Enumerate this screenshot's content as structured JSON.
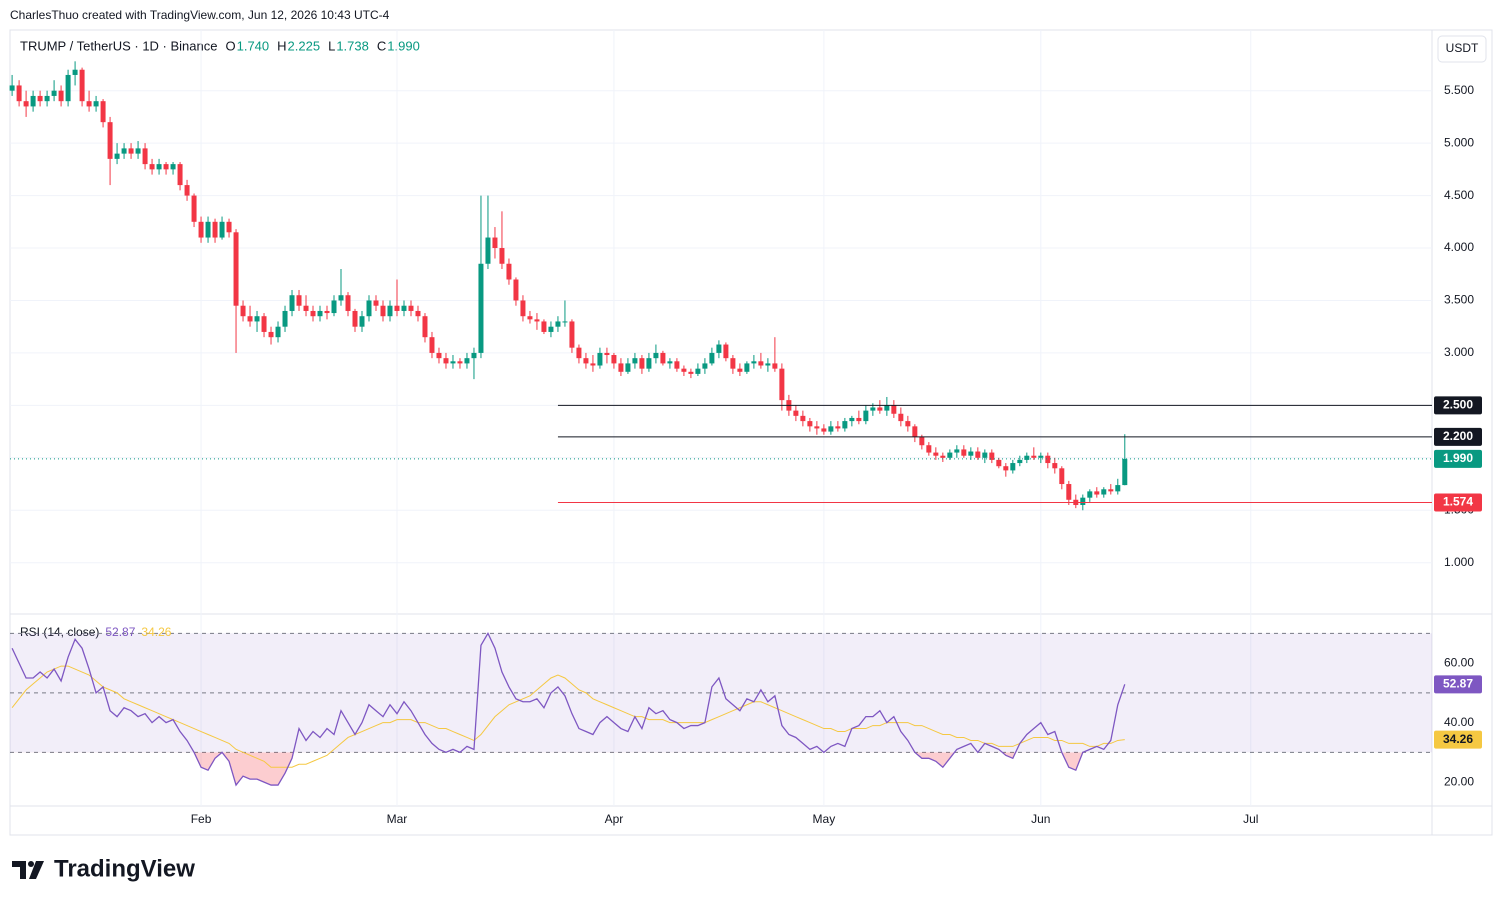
{
  "attribution": "CharlesThuo created with TradingView.com, Jun 12, 2026 10:43 UTC-4",
  "brand": "TradingView",
  "chart_data": {
    "type": "candlestick",
    "title": "TRUMP / TetherUS · 1D · Binance",
    "legend": [
      {
        "name": "O",
        "text": "1.740"
      },
      {
        "name": "H",
        "text": "2.225"
      },
      {
        "name": "L",
        "text": "1.738"
      },
      {
        "name": "C",
        "text": "1.990"
      }
    ],
    "currency": "USDT",
    "up_color": "#089981",
    "down_color": "#f23645",
    "candles": [
      [
        5.5,
        5.65,
        5.45,
        5.55
      ],
      [
        5.55,
        5.6,
        5.35,
        5.4
      ],
      [
        5.4,
        5.5,
        5.25,
        5.35
      ],
      [
        5.35,
        5.5,
        5.3,
        5.45
      ],
      [
        5.45,
        5.5,
        5.35,
        5.4
      ],
      [
        5.4,
        5.5,
        5.35,
        5.45
      ],
      [
        5.45,
        5.6,
        5.4,
        5.5
      ],
      [
        5.5,
        5.55,
        5.35,
        5.4
      ],
      [
        5.4,
        5.7,
        5.35,
        5.65
      ],
      [
        5.65,
        5.78,
        5.55,
        5.7
      ],
      [
        5.7,
        5.72,
        5.35,
        5.4
      ],
      [
        5.4,
        5.5,
        5.3,
        5.35
      ],
      [
        5.35,
        5.45,
        5.3,
        5.4
      ],
      [
        5.4,
        5.42,
        5.15,
        5.2
      ],
      [
        5.2,
        5.25,
        4.6,
        4.85
      ],
      [
        4.85,
        5.0,
        4.8,
        4.9
      ],
      [
        4.9,
        5.0,
        4.85,
        4.95
      ],
      [
        4.95,
        5.0,
        4.85,
        4.9
      ],
      [
        4.9,
        5.02,
        4.85,
        4.95
      ],
      [
        4.95,
        5.0,
        4.75,
        4.8
      ],
      [
        4.8,
        4.85,
        4.7,
        4.75
      ],
      [
        4.75,
        4.85,
        4.7,
        4.8
      ],
      [
        4.8,
        4.82,
        4.7,
        4.75
      ],
      [
        4.75,
        4.82,
        4.7,
        4.8
      ],
      [
        4.8,
        4.82,
        4.55,
        4.6
      ],
      [
        4.6,
        4.65,
        4.45,
        4.5
      ],
      [
        4.5,
        4.52,
        4.2,
        4.25
      ],
      [
        4.25,
        4.3,
        4.05,
        4.1
      ],
      [
        4.1,
        4.3,
        4.05,
        4.25
      ],
      [
        4.25,
        4.28,
        4.05,
        4.1
      ],
      [
        4.1,
        4.3,
        4.08,
        4.25
      ],
      [
        4.25,
        4.28,
        4.1,
        4.15
      ],
      [
        4.15,
        4.18,
        3.0,
        3.45
      ],
      [
        3.45,
        3.5,
        3.3,
        3.35
      ],
      [
        3.35,
        3.45,
        3.25,
        3.3
      ],
      [
        3.3,
        3.4,
        3.2,
        3.35
      ],
      [
        3.35,
        3.38,
        3.15,
        3.2
      ],
      [
        3.2,
        3.25,
        3.08,
        3.15
      ],
      [
        3.15,
        3.3,
        3.1,
        3.25
      ],
      [
        3.25,
        3.45,
        3.2,
        3.4
      ],
      [
        3.4,
        3.6,
        3.35,
        3.55
      ],
      [
        3.55,
        3.6,
        3.4,
        3.45
      ],
      [
        3.45,
        3.55,
        3.35,
        3.4
      ],
      [
        3.4,
        3.45,
        3.3,
        3.35
      ],
      [
        3.35,
        3.45,
        3.3,
        3.4
      ],
      [
        3.4,
        3.45,
        3.32,
        3.38
      ],
      [
        3.38,
        3.55,
        3.35,
        3.5
      ],
      [
        3.5,
        3.8,
        3.45,
        3.55
      ],
      [
        3.55,
        3.58,
        3.35,
        3.4
      ],
      [
        3.4,
        3.42,
        3.2,
        3.25
      ],
      [
        3.25,
        3.4,
        3.2,
        3.35
      ],
      [
        3.35,
        3.55,
        3.3,
        3.5
      ],
      [
        3.5,
        3.55,
        3.4,
        3.45
      ],
      [
        3.45,
        3.5,
        3.3,
        3.35
      ],
      [
        3.35,
        3.5,
        3.3,
        3.45
      ],
      [
        3.45,
        3.7,
        3.35,
        3.4
      ],
      [
        3.4,
        3.5,
        3.35,
        3.45
      ],
      [
        3.45,
        3.5,
        3.35,
        3.4
      ],
      [
        3.4,
        3.45,
        3.3,
        3.35
      ],
      [
        3.35,
        3.38,
        3.1,
        3.15
      ],
      [
        3.15,
        3.2,
        2.95,
        3.0
      ],
      [
        3.0,
        3.05,
        2.9,
        2.95
      ],
      [
        2.95,
        3.0,
        2.85,
        2.9
      ],
      [
        2.9,
        2.98,
        2.85,
        2.92
      ],
      [
        2.92,
        2.95,
        2.85,
        2.9
      ],
      [
        2.9,
        3.0,
        2.85,
        2.95
      ],
      [
        2.95,
        3.05,
        2.75,
        3.0
      ],
      [
        3.0,
        4.5,
        2.95,
        3.85
      ],
      [
        3.85,
        4.5,
        3.8,
        4.1
      ],
      [
        4.1,
        4.2,
        3.9,
        4.0
      ],
      [
        4.0,
        4.35,
        3.8,
        3.85
      ],
      [
        3.85,
        3.9,
        3.65,
        3.7
      ],
      [
        3.7,
        3.72,
        3.45,
        3.5
      ],
      [
        3.5,
        3.55,
        3.3,
        3.35
      ],
      [
        3.35,
        3.4,
        3.28,
        3.32
      ],
      [
        3.32,
        3.38,
        3.22,
        3.3
      ],
      [
        3.3,
        3.32,
        3.18,
        3.2
      ],
      [
        3.2,
        3.3,
        3.15,
        3.25
      ],
      [
        3.25,
        3.35,
        3.2,
        3.3
      ],
      [
        3.3,
        3.5,
        3.25,
        3.3
      ],
      [
        3.3,
        3.32,
        3.0,
        3.05
      ],
      [
        3.05,
        3.08,
        2.9,
        2.95
      ],
      [
        2.95,
        3.0,
        2.85,
        2.9
      ],
      [
        2.9,
        2.98,
        2.82,
        2.88
      ],
      [
        2.88,
        3.05,
        2.85,
        3.0
      ],
      [
        3.0,
        3.05,
        2.9,
        2.98
      ],
      [
        2.98,
        3.0,
        2.85,
        2.9
      ],
      [
        2.9,
        2.95,
        2.78,
        2.82
      ],
      [
        2.82,
        2.95,
        2.8,
        2.9
      ],
      [
        2.9,
        3.0,
        2.85,
        2.95
      ],
      [
        2.95,
        2.98,
        2.8,
        2.85
      ],
      [
        2.85,
        3.0,
        2.82,
        2.95
      ],
      [
        2.95,
        3.08,
        2.9,
        3.0
      ],
      [
        3.0,
        3.02,
        2.88,
        2.9
      ],
      [
        2.9,
        2.95,
        2.85,
        2.92
      ],
      [
        2.92,
        2.95,
        2.82,
        2.85
      ],
      [
        2.85,
        2.88,
        2.78,
        2.82
      ],
      [
        2.82,
        2.85,
        2.76,
        2.8
      ],
      [
        2.8,
        2.9,
        2.78,
        2.85
      ],
      [
        2.85,
        2.95,
        2.8,
        2.9
      ],
      [
        2.9,
        3.05,
        2.88,
        3.0
      ],
      [
        3.0,
        3.12,
        2.95,
        3.08
      ],
      [
        3.08,
        3.1,
        2.92,
        2.95
      ],
      [
        2.95,
        2.98,
        2.8,
        2.85
      ],
      [
        2.85,
        2.9,
        2.78,
        2.82
      ],
      [
        2.82,
        2.92,
        2.8,
        2.9
      ],
      [
        2.9,
        2.98,
        2.85,
        2.92
      ],
      [
        2.92,
        3.0,
        2.85,
        2.88
      ],
      [
        2.88,
        2.95,
        2.82,
        2.9
      ],
      [
        2.9,
        3.15,
        2.82,
        2.85
      ],
      [
        2.85,
        2.9,
        2.45,
        2.55
      ],
      [
        2.55,
        2.6,
        2.4,
        2.45
      ],
      [
        2.45,
        2.5,
        2.35,
        2.4
      ],
      [
        2.4,
        2.45,
        2.3,
        2.35
      ],
      [
        2.35,
        2.38,
        2.25,
        2.3
      ],
      [
        2.3,
        2.35,
        2.22,
        2.28
      ],
      [
        2.28,
        2.32,
        2.22,
        2.25
      ],
      [
        2.25,
        2.35,
        2.22,
        2.3
      ],
      [
        2.3,
        2.35,
        2.25,
        2.28
      ],
      [
        2.28,
        2.38,
        2.25,
        2.35
      ],
      [
        2.35,
        2.4,
        2.3,
        2.38
      ],
      [
        2.38,
        2.45,
        2.32,
        2.35
      ],
      [
        2.35,
        2.5,
        2.32,
        2.45
      ],
      [
        2.45,
        2.52,
        2.4,
        2.48
      ],
      [
        2.48,
        2.55,
        2.42,
        2.45
      ],
      [
        2.45,
        2.58,
        2.4,
        2.5
      ],
      [
        2.5,
        2.55,
        2.38,
        2.42
      ],
      [
        2.42,
        2.48,
        2.3,
        2.35
      ],
      [
        2.35,
        2.4,
        2.25,
        2.3
      ],
      [
        2.3,
        2.32,
        2.15,
        2.2
      ],
      [
        2.2,
        2.22,
        2.08,
        2.12
      ],
      [
        2.12,
        2.15,
        2.02,
        2.05
      ],
      [
        2.05,
        2.1,
        1.98,
        2.02
      ],
      [
        2.02,
        2.05,
        1.96,
        2.0
      ],
      [
        2.0,
        2.08,
        1.98,
        2.05
      ],
      [
        2.05,
        2.12,
        2.0,
        2.08
      ],
      [
        2.08,
        2.12,
        2.0,
        2.02
      ],
      [
        2.02,
        2.1,
        1.98,
        2.06
      ],
      [
        2.06,
        2.1,
        1.98,
        2.0
      ],
      [
        2.0,
        2.08,
        1.95,
        2.05
      ],
      [
        2.05,
        2.08,
        1.95,
        1.98
      ],
      [
        1.98,
        2.0,
        1.9,
        1.92
      ],
      [
        1.92,
        1.95,
        1.82,
        1.88
      ],
      [
        1.88,
        1.98,
        1.85,
        1.95
      ],
      [
        1.95,
        2.02,
        1.92,
        1.98
      ],
      [
        1.98,
        2.05,
        1.95,
        2.02
      ],
      [
        2.02,
        2.1,
        1.98,
        2.0
      ],
      [
        2.0,
        2.05,
        1.95,
        2.02
      ],
      [
        2.02,
        2.05,
        1.9,
        1.95
      ],
      [
        1.95,
        2.0,
        1.85,
        1.9
      ],
      [
        1.9,
        1.92,
        1.7,
        1.75
      ],
      [
        1.75,
        1.78,
        1.55,
        1.6
      ],
      [
        1.6,
        1.65,
        1.52,
        1.55
      ],
      [
        1.55,
        1.65,
        1.5,
        1.62
      ],
      [
        1.62,
        1.7,
        1.58,
        1.68
      ],
      [
        1.68,
        1.72,
        1.62,
        1.65
      ],
      [
        1.65,
        1.72,
        1.62,
        1.7
      ],
      [
        1.7,
        1.75,
        1.65,
        1.68
      ],
      [
        1.68,
        1.8,
        1.65,
        1.74
      ],
      [
        1.74,
        2.225,
        1.738,
        1.99
      ]
    ],
    "xlim": [
      -0.3,
      202.9
    ],
    "xticks": [
      {
        "value": 27,
        "label": "Feb"
      },
      {
        "value": 55,
        "label": "Mar"
      },
      {
        "value": 86,
        "label": "Apr"
      },
      {
        "value": 116,
        "label": "May"
      },
      {
        "value": 147,
        "label": "Jun"
      },
      {
        "value": 177,
        "label": "Jul"
      }
    ],
    "ylim": [
      0.53,
      6.05
    ],
    "yticks": [
      {
        "value": 1,
        "label": "1.000"
      },
      {
        "value": 1.5,
        "label": "1.500"
      },
      {
        "value": 2,
        "label": "2.000"
      },
      {
        "value": 2.5,
        "label": "2.500"
      },
      {
        "value": 3,
        "label": "3.000"
      },
      {
        "value": 3.5,
        "label": "3.500"
      },
      {
        "value": 4,
        "label": "4.000"
      },
      {
        "value": 4.5,
        "label": "4.500"
      },
      {
        "value": 5,
        "label": "5.000"
      },
      {
        "value": 5.5,
        "label": "5.500"
      }
    ],
    "grid": true,
    "levels": [
      {
        "value": 2.5,
        "label": "2.500",
        "color": "#131722",
        "x_start": 78
      },
      {
        "value": 2.2,
        "label": "2.200",
        "color": "#131722",
        "x_start": 78
      },
      {
        "value": 1.574,
        "label": "1.574",
        "color": "#f23645",
        "x_start": 78
      }
    ],
    "last_price": {
      "value": 1.99,
      "label": "1.990",
      "color": "#089981"
    },
    "rsi": {
      "title": "RSI (14, close)",
      "ylim": [
        12.3,
        75.5
      ],
      "yticks": [
        {
          "value": 20,
          "label": "20.00"
        },
        {
          "value": 40,
          "label": "40.00"
        },
        {
          "value": 60,
          "label": "60.00"
        }
      ],
      "bands": [
        70,
        50,
        30
      ],
      "series": [
        {
          "color": "#7e57c2",
          "last_label": "52.87",
          "values": [
            65,
            60,
            55,
            55,
            57,
            55,
            58,
            54,
            62,
            68,
            65,
            58,
            50,
            52,
            44,
            42,
            45,
            44,
            42,
            43,
            40,
            42,
            40,
            41,
            37,
            34,
            30,
            25,
            24,
            28,
            30,
            27,
            19,
            22,
            21,
            21,
            20,
            19,
            19,
            23,
            28,
            38,
            34,
            37,
            35,
            38,
            36,
            44,
            40,
            36,
            40,
            46,
            44,
            42,
            46,
            43,
            47,
            44,
            40,
            36,
            33,
            31,
            30,
            31,
            30,
            32,
            31,
            66,
            70,
            65,
            57,
            52,
            48,
            47,
            47,
            48,
            45,
            50,
            52,
            49,
            43,
            38,
            37,
            36,
            40,
            42,
            40,
            38,
            37,
            42,
            38,
            45,
            43,
            44,
            41,
            40,
            38,
            39,
            39,
            40,
            52,
            55,
            48,
            46,
            44,
            48,
            47,
            51,
            47,
            49,
            39,
            36,
            35,
            33,
            31,
            32,
            30,
            32,
            33,
            32,
            38,
            39,
            42,
            42,
            44,
            40,
            42,
            37,
            34,
            30,
            28,
            28,
            27,
            25,
            28,
            31,
            32,
            33,
            30,
            33,
            32,
            31,
            29,
            28,
            33,
            36,
            38,
            40,
            36,
            37,
            30,
            25,
            24,
            30,
            31,
            32,
            31,
            34,
            46,
            52.87
          ]
        },
        {
          "color": "#f5c842",
          "last_label": "34.26",
          "values": [
            45,
            48,
            51,
            53,
            55,
            57,
            58,
            59,
            59,
            58,
            57,
            56,
            54,
            52,
            51,
            50,
            48,
            47,
            46,
            45,
            44,
            43,
            42,
            41,
            40,
            39,
            38,
            37,
            36,
            35,
            34,
            33,
            31,
            30,
            29,
            28,
            27,
            25,
            25,
            25,
            25,
            26,
            26,
            27,
            28,
            29,
            31,
            33,
            35,
            36,
            37,
            38,
            39,
            40,
            40,
            41,
            41,
            41,
            40,
            40,
            39,
            38,
            38,
            37,
            36,
            35,
            34,
            36,
            39,
            42,
            44,
            46,
            47,
            48,
            49,
            51,
            53,
            55,
            56,
            55,
            53,
            51,
            50,
            48,
            47,
            46,
            45,
            44,
            43,
            42,
            42,
            41,
            41,
            41,
            40,
            40,
            40,
            40,
            40,
            40,
            41,
            42,
            43,
            44,
            45,
            46,
            47,
            47,
            46,
            45,
            44,
            43,
            42,
            41,
            40,
            39,
            38,
            38,
            37,
            37,
            38,
            38,
            38,
            39,
            39,
            40,
            40,
            40,
            40,
            39,
            39,
            38,
            37,
            36,
            36,
            35,
            35,
            34,
            34,
            33,
            33,
            32,
            32,
            32,
            33,
            34,
            35,
            35,
            35,
            34,
            34,
            33,
            33,
            33,
            32,
            32,
            33,
            33,
            34,
            34.26
          ]
        }
      ]
    }
  }
}
